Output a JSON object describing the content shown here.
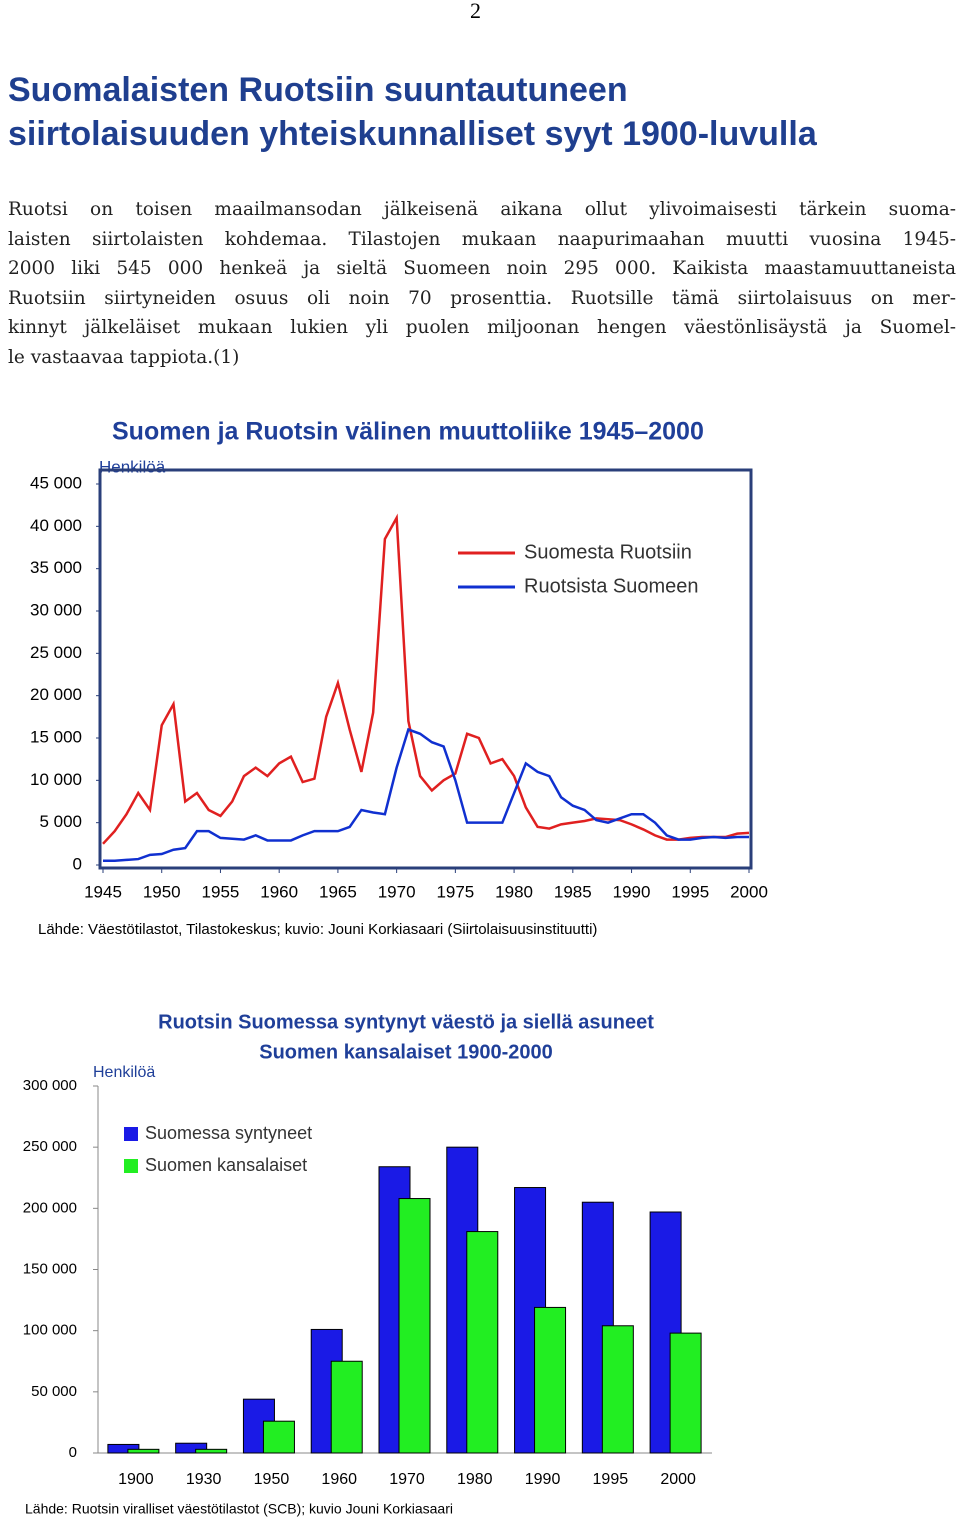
{
  "page_number": "2",
  "title": [
    "Suomalaisten Ruotsiin suuntautuneen",
    "siirtolaisuuden yhteiskunnalliset syyt 1900-luvulla"
  ],
  "paragraph": [
    "Ruotsi on toisen maailmansodan jälkeisenä aikana ollut ylivoimaisesti tärkein suoma-",
    "laisten siirtolaisten kohdemaa. Tilastojen mukaan naapurimaahan muutti vuosina 1945-",
    "2000 liki 545 000 henkeä ja sieltä Suomeen noin 295 000. Kaikista maastamuuttaneista",
    "Ruotsiin siirtyneiden osuus oli noin 70 prosenttia. Ruotsille tämä siirtolaisuus on mer-",
    "kinnyt jälkeläiset mukaan lukien yli puolen miljoonan hengen väestönlisäystä ja Suomel-",
    "le vastaavaa tappiota.(1)"
  ],
  "chart_data": [
    {
      "type": "line",
      "title": "Suomen ja Ruotsin välinen muuttoliike 1945–2000",
      "y_label": "Henkilöä",
      "source": "Lähde: Väestötilastot, Tilastokeskus; kuvio: Jouni Korkiasaari (Siirtolaisuusinstituutti)",
      "x": [
        1945,
        1946,
        1947,
        1948,
        1949,
        1950,
        1951,
        1952,
        1953,
        1954,
        1955,
        1956,
        1957,
        1958,
        1959,
        1960,
        1961,
        1962,
        1963,
        1964,
        1965,
        1966,
        1967,
        1968,
        1969,
        1970,
        1971,
        1972,
        1973,
        1974,
        1975,
        1976,
        1977,
        1978,
        1979,
        1980,
        1981,
        1982,
        1983,
        1984,
        1985,
        1986,
        1987,
        1988,
        1989,
        1990,
        1991,
        1992,
        1993,
        1994,
        1995,
        1996,
        1997,
        1998,
        1999,
        2000
      ],
      "xlim": [
        1945,
        2000
      ],
      "xticks": [
        1945,
        1950,
        1955,
        1960,
        1965,
        1970,
        1975,
        1980,
        1985,
        1990,
        1995,
        2000
      ],
      "ylim": [
        0,
        45000
      ],
      "yticks": [
        0,
        {
          "value": 5000,
          "label": "5 000"
        },
        {
          "value": 10000,
          "label": "10 000"
        },
        {
          "value": 15000,
          "label": "15 000"
        },
        {
          "value": 20000,
          "label": "20 000"
        },
        {
          "value": 25000,
          "label": "25 000"
        },
        {
          "value": 30000,
          "label": "30 000"
        },
        {
          "value": 35000,
          "label": "35 000"
        },
        {
          "value": 40000,
          "label": "40 000"
        },
        {
          "value": 45000,
          "label": "45 000"
        }
      ],
      "series": [
        {
          "name": "Suomesta Ruotsiin",
          "color": "#e02020",
          "values": [
            2500,
            4000,
            6000,
            8500,
            6500,
            16500,
            19000,
            7500,
            8500,
            6500,
            5800,
            7500,
            10500,
            11500,
            10500,
            12000,
            12800,
            9800,
            10200,
            17500,
            21500,
            16000,
            11000,
            18000,
            38500,
            41000,
            17000,
            10500,
            8800,
            10000,
            10800,
            15500,
            15000,
            12000,
            12500,
            10500,
            6800,
            4500,
            4300,
            4800,
            5000,
            5200,
            5500,
            5400,
            5300,
            4800,
            4200,
            3500,
            3000,
            3000,
            3200,
            3300,
            3300,
            3300,
            3700,
            3800
          ]
        },
        {
          "name": "Ruotsista Suomeen",
          "color": "#1030d0",
          "values": [
            500,
            500,
            600,
            700,
            1200,
            1300,
            1800,
            2000,
            4000,
            4000,
            3200,
            3100,
            3000,
            3500,
            2900,
            2900,
            2900,
            3500,
            4000,
            4000,
            4000,
            4500,
            6500,
            6200,
            6000,
            11500,
            16000,
            15500,
            14500,
            14000,
            10000,
            5000,
            5000,
            5000,
            5000,
            8500,
            12000,
            11000,
            10500,
            8000,
            7000,
            6500,
            5300,
            5000,
            5500,
            6000,
            6000,
            5000,
            3500,
            3000,
            3000,
            3200,
            3300,
            3200,
            3300,
            3300
          ]
        }
      ]
    },
    {
      "type": "bar",
      "title": [
        "Ruotsin Suomessa syntynyt väestö ja siellä asuneet",
        "Suomen kansalaiset 1900-2000"
      ],
      "y_label": "Henkilöä",
      "source": "Lähde: Ruotsin viralliset väestötilastot (SCB); kuvio Jouni Korkiasaari",
      "categories": [
        "1900",
        "1930",
        "1950",
        "1960",
        "1970",
        "1980",
        "1990",
        "1995",
        "2000"
      ],
      "ylim": [
        0,
        300000
      ],
      "yticks": [
        0,
        {
          "value": 50000,
          "label": "50 000"
        },
        {
          "value": 100000,
          "label": "100 000"
        },
        {
          "value": 150000,
          "label": "150 000"
        },
        {
          "value": 200000,
          "label": "200 000"
        },
        {
          "value": 250000,
          "label": "250 000"
        },
        {
          "value": 300000,
          "label": "300 000"
        }
      ],
      "series": [
        {
          "name": "Suomessa syntyneet",
          "color": "#1a1ae6",
          "values": [
            7000,
            8000,
            44000,
            101000,
            234000,
            250000,
            217000,
            205000,
            197000
          ]
        },
        {
          "name": "Suomen kansalaiset",
          "color": "#22ee22",
          "values": [
            3000,
            3000,
            26000,
            75000,
            208000,
            181000,
            119000,
            104000,
            98000
          ]
        }
      ]
    }
  ]
}
